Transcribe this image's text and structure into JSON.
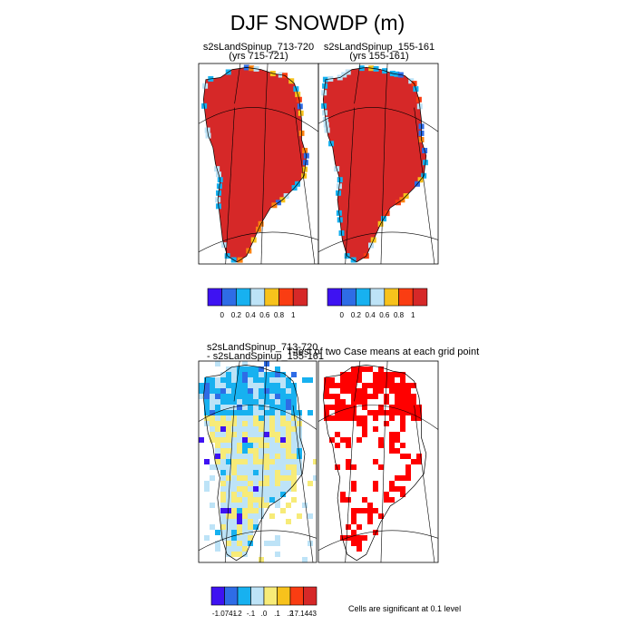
{
  "title": "DJF SNOWDP (m)",
  "colors": {
    "blue_violet": "#3e12f2",
    "blue": "#2e6ce6",
    "sky": "#17b1f0",
    "light_blue": "#bde3f7",
    "light_yellow": "#f7eb78",
    "yellow_orange": "#f7c21c",
    "orange": "#fd8210",
    "red_orange": "#fa3d12",
    "red": "#d62828",
    "sig_red": "#ff0000",
    "outline": "#000000"
  },
  "chart_data": [
    {
      "type": "heatmap",
      "title_line1": "s2sLandSpinup_713-720",
      "title_line2": "(yrs 715-721)",
      "field": "SNOWDP (m)",
      "region": "Greenland"
    },
    {
      "type": "heatmap",
      "title_line1": "s2sLandSpinup_155-161",
      "title_line2": "(yrs 155-161)",
      "field": "SNOWDP (m)",
      "region": "Greenland"
    },
    {
      "type": "heatmap",
      "title_line1": "s2sLandSpinup_713-720",
      "title_line2": "- s2sLandSpinup_155-161",
      "field": "difference",
      "region": "Greenland"
    },
    {
      "type": "heatmap",
      "title_line1": "T-test of two Case means at each grid point",
      "field": "significance",
      "region": "Greenland"
    }
  ],
  "colorbars": {
    "top_left": {
      "tick_labels": [
        "0",
        "0.2",
        "0.4",
        "0.6",
        "0.8",
        "1"
      ],
      "bin_colors": [
        "#3e12f2",
        "#2e6ce6",
        "#17b1f0",
        "#bde3f7",
        "#f7c21c",
        "#fa3d12",
        "#d62828"
      ]
    },
    "top_right": {
      "tick_labels": [
        "0",
        "0.2",
        "0.4",
        "0.6",
        "0.8",
        "1"
      ],
      "bin_colors": [
        "#3e12f2",
        "#2e6ce6",
        "#17b1f0",
        "#bde3f7",
        "#f7c21c",
        "#fa3d12",
        "#d62828"
      ]
    },
    "bottom": {
      "tick_labels": [
        "-1.0741",
        "-.2",
        "-.1",
        ".0",
        ".1",
        ".2",
        "17.1443"
      ],
      "bin_colors": [
        "#3e12f2",
        "#2e6ce6",
        "#17b1f0",
        "#bde3f7",
        "#f7eb78",
        "#f7c21c",
        "#fa3d12",
        "#d62828"
      ]
    }
  },
  "significance_note": "Cells are significant at 0.1 level"
}
